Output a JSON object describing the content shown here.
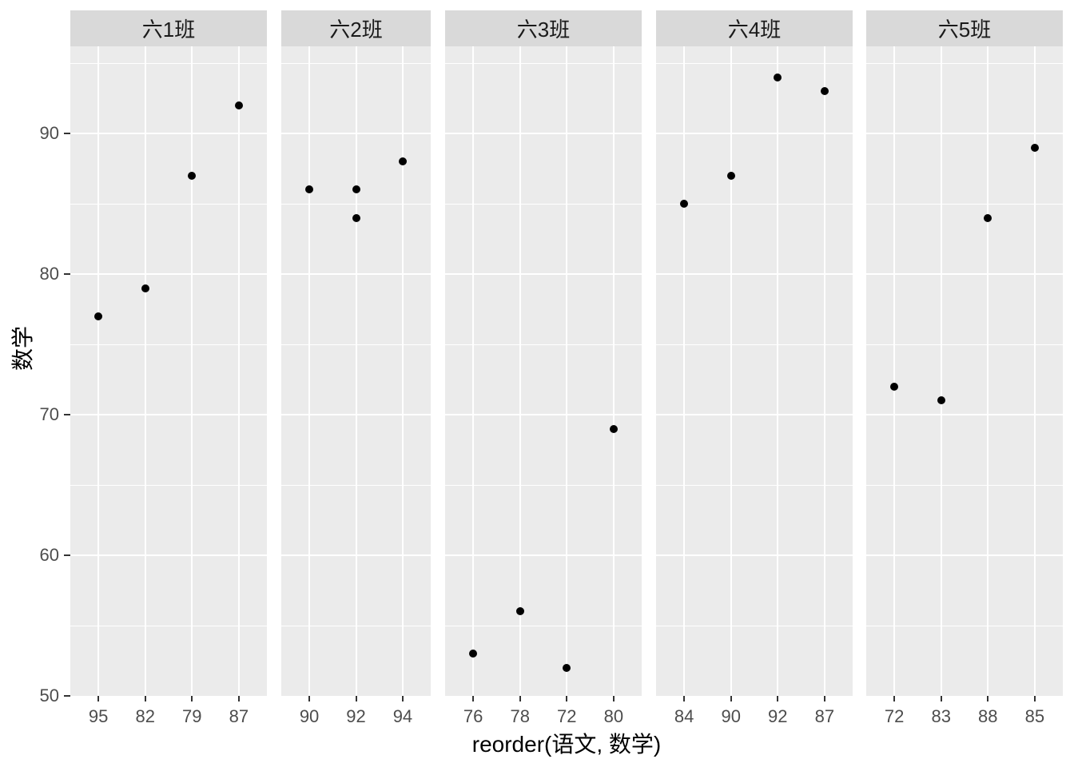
{
  "chart_data": {
    "type": "scatter",
    "title": "",
    "xlabel": "reorder(语文, 数学)",
    "ylabel": "数学",
    "ylim": [
      50,
      96.2
    ],
    "grid": "on",
    "legend": "none",
    "y_major_ticks": [
      50,
      60,
      70,
      80,
      90
    ],
    "y_minor_gridlines": [
      55,
      65,
      75,
      85,
      95
    ],
    "facets": [
      {
        "label": "六1班",
        "categories": [
          "95",
          "82",
          "79",
          "87"
        ],
        "points": [
          {
            "x": "95",
            "y": 77
          },
          {
            "x": "82",
            "y": 79
          },
          {
            "x": "79",
            "y": 87
          },
          {
            "x": "87",
            "y": 92
          }
        ]
      },
      {
        "label": "六2班",
        "categories": [
          "90",
          "92",
          "94"
        ],
        "points": [
          {
            "x": "90",
            "y": 86
          },
          {
            "x": "92",
            "y": 86
          },
          {
            "x": "92",
            "y": 84
          },
          {
            "x": "94",
            "y": 88
          }
        ]
      },
      {
        "label": "六3班",
        "categories": [
          "76",
          "78",
          "72",
          "80"
        ],
        "points": [
          {
            "x": "76",
            "y": 53
          },
          {
            "x": "78",
            "y": 56
          },
          {
            "x": "72",
            "y": 52
          },
          {
            "x": "80",
            "y": 69
          }
        ]
      },
      {
        "label": "六4班",
        "categories": [
          "84",
          "90",
          "92",
          "87"
        ],
        "points": [
          {
            "x": "84",
            "y": 85
          },
          {
            "x": "90",
            "y": 87
          },
          {
            "x": "92",
            "y": 94
          },
          {
            "x": "87",
            "y": 93
          }
        ]
      },
      {
        "label": "六5班",
        "categories": [
          "72",
          "83",
          "88",
          "85"
        ],
        "points": [
          {
            "x": "72",
            "y": 72
          },
          {
            "x": "83",
            "y": 71
          },
          {
            "x": "88",
            "y": 84
          },
          {
            "x": "85",
            "y": 89
          }
        ]
      }
    ],
    "colors": {
      "page_bg": "#FFFFFF",
      "panel_bg": "#EBEBEB",
      "strip_bg": "#D9D9D9",
      "gridline": "#FFFFFF",
      "point": "#000000",
      "axis_text": "#4D4D4D",
      "tick_mark": "#333333",
      "strip_text": "#1A1A1A",
      "axis_title": "#000000"
    }
  }
}
